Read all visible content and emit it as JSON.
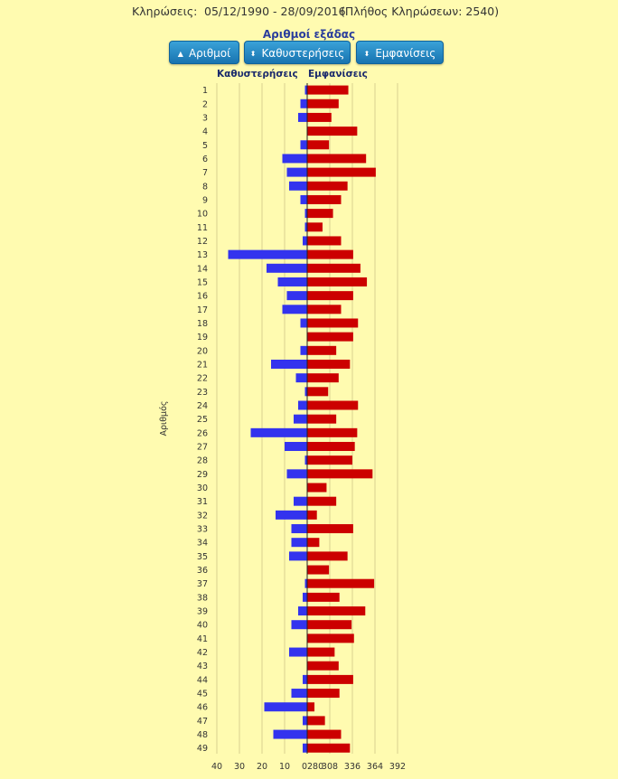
{
  "header": {
    "draws_label": "Κληρώσεις:",
    "date_range": "05/12/1990 - 28/09/2016",
    "draw_count": "(Πλήθος Κληρώσεων: 2540)"
  },
  "title": "Αριθμοί εξάδας",
  "buttons": [
    {
      "label": "Αριθμοί",
      "icon": "triangle-up-icon"
    },
    {
      "label": "Καθυστερήσεις",
      "icon": "sort-icon"
    },
    {
      "label": "Εμφανίσεις",
      "icon": "sort-icon"
    }
  ],
  "chart_data": {
    "type": "bar",
    "orientation": "horizontal",
    "ylabel": "Αριθμός",
    "categories": [
      "1",
      "2",
      "3",
      "4",
      "5",
      "6",
      "7",
      "8",
      "9",
      "10",
      "11",
      "12",
      "13",
      "14",
      "15",
      "16",
      "17",
      "18",
      "19",
      "20",
      "21",
      "22",
      "23",
      "24",
      "25",
      "26",
      "27",
      "28",
      "29",
      "30",
      "31",
      "32",
      "33",
      "34",
      "35",
      "36",
      "37",
      "38",
      "39",
      "40",
      "41",
      "42",
      "43",
      "44",
      "45",
      "46",
      "47",
      "48",
      "49"
    ],
    "series": [
      {
        "name": "Καθυστερήσεις",
        "color": "#3333ee",
        "xlim": [
          0,
          40
        ],
        "ticks": [
          "40",
          "30",
          "20",
          "10",
          "0"
        ],
        "values": [
          1,
          3,
          4,
          0,
          3,
          11,
          9,
          8,
          3,
          1,
          1,
          2,
          35,
          18,
          13,
          9,
          11,
          3,
          0,
          3,
          16,
          5,
          1,
          4,
          6,
          25,
          10,
          1,
          9,
          0,
          6,
          14,
          7,
          7,
          8,
          0,
          1,
          2,
          4,
          7,
          0,
          8,
          0,
          2,
          7,
          19,
          2,
          15,
          2
        ]
      },
      {
        "name": "Εμφανίσεις",
        "color": "#cc0000",
        "xlim": [
          280,
          392
        ],
        "ticks": [
          "280",
          "308",
          "336",
          "364",
          "392"
        ],
        "values": [
          331,
          319,
          310,
          342,
          307,
          353,
          365,
          330,
          322,
          312,
          299,
          322,
          337,
          346,
          354,
          337,
          322,
          343,
          337,
          316,
          333,
          319,
          306,
          343,
          316,
          342,
          339,
          336,
          361,
          304,
          316,
          292,
          337,
          295,
          330,
          307,
          363,
          320,
          352,
          335,
          338,
          314,
          319,
          337,
          320,
          289,
          302,
          322,
          333
        ]
      }
    ]
  }
}
